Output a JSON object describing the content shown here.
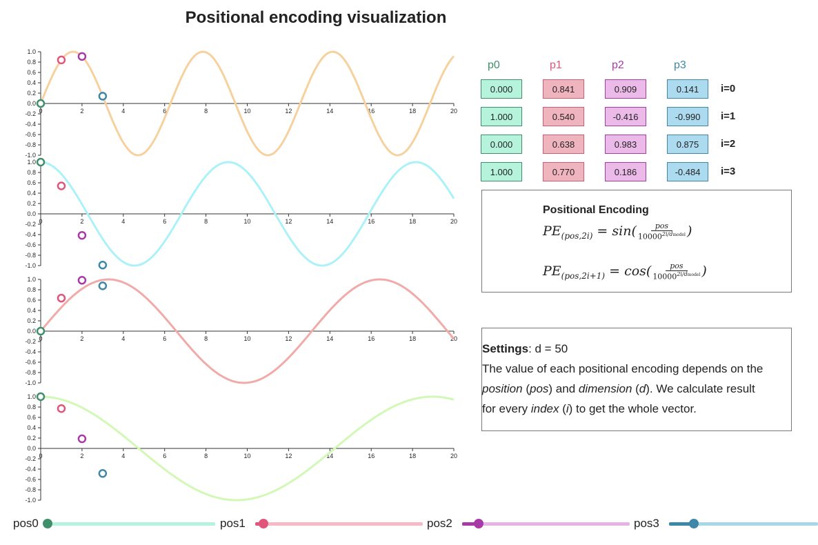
{
  "title": "Positional encoding visualization",
  "chart_data": {
    "type": "line",
    "x_range": [
      0,
      20
    ],
    "y_range": [
      -1,
      1
    ],
    "x_ticks": [
      0,
      2,
      4,
      6,
      8,
      10,
      12,
      14,
      16,
      18,
      20
    ],
    "y_ticks": [
      1.0,
      0.8,
      0.6,
      0.4,
      0.2,
      0.0,
      -0.2,
      -0.4,
      -0.6,
      -0.8,
      -1.0
    ],
    "d_model": 50,
    "positions": [
      0,
      1,
      2,
      3
    ],
    "position_colors": [
      "#3f8f6b",
      "#e0567a",
      "#a83aa8",
      "#3d87a8"
    ],
    "subplots": [
      {
        "index": 0,
        "func": "sin",
        "color": "#f6d19e",
        "points": [
          0.0,
          0.841,
          0.909,
          0.141
        ]
      },
      {
        "index": 1,
        "func": "cos",
        "color": "#aaf1f8",
        "points": [
          1.0,
          0.54,
          -0.416,
          -0.99
        ]
      },
      {
        "index": 2,
        "func": "sin",
        "color": "#f0aaa8",
        "points": [
          0.0,
          0.638,
          0.983,
          0.875
        ]
      },
      {
        "index": 3,
        "func": "cos",
        "color": "#d2f8b6",
        "points": [
          1.0,
          0.77,
          0.186,
          -0.484
        ]
      }
    ]
  },
  "table": {
    "headers": [
      "p0",
      "p1",
      "p2",
      "p3"
    ],
    "header_colors": [
      "#3f8f6b",
      "#e0567a",
      "#a83aa8",
      "#3d87a8"
    ],
    "cell_colors": [
      {
        "bg": "#b5f3dd",
        "border": "#3f8f6b"
      },
      {
        "bg": "#f0b4be",
        "border": "#d05a70"
      },
      {
        "bg": "#ebbae9",
        "border": "#a83aa8"
      },
      {
        "bg": "#acdbef",
        "border": "#3d87a8"
      }
    ],
    "rows": [
      {
        "label": "i=0",
        "values": [
          "0.000",
          "0.841",
          "0.909",
          "0.141"
        ]
      },
      {
        "label": "i=1",
        "values": [
          "1.000",
          "0.540",
          "-0.416",
          "-0.990"
        ]
      },
      {
        "label": "i=2",
        "values": [
          "0.000",
          "0.638",
          "0.983",
          "0.875"
        ]
      },
      {
        "label": "i=3",
        "values": [
          "1.000",
          "0.770",
          "0.186",
          "-0.484"
        ]
      }
    ]
  },
  "formula": {
    "title": "Positional Encoding",
    "pe": "PE",
    "sub1": "(pos,2i)",
    "sub2": "(pos,2i+1)",
    "eq": " = ",
    "fn1": "sin(",
    "fn2": "cos(",
    "close": ")",
    "num": "pos",
    "den_base": "10000",
    "den_exp": "2i/d",
    "den_exp_sub": "model"
  },
  "settings": {
    "label": "Settings",
    "value": ": d = 50",
    "text1": "The value of each positional encoding depends on the",
    "t_position": "position",
    "t_pos_open": " (",
    "t_pos": "pos",
    "t_and": ") and ",
    "t_dimension": "dimension",
    "t_d_open": " (",
    "t_d": "d",
    "t_calc": "). We calculate result",
    "t_for": "for every ",
    "t_index": "index",
    "t_i_open": " (",
    "t_i": "i",
    "t_end": ") to get the whole vector."
  },
  "sliders": [
    {
      "label": "pos0",
      "value": 0,
      "color": "#3f8f6b",
      "track": "#b5f3dd"
    },
    {
      "label": "pos1",
      "value": 1,
      "color": "#e0567a",
      "track": "#f7b9c6"
    },
    {
      "label": "pos2",
      "value": 2,
      "color": "#a83aa8",
      "track": "#e6b3e6"
    },
    {
      "label": "pos3",
      "value": 3,
      "color": "#3d87a8",
      "track": "#a9d7ea"
    }
  ],
  "slider_range": [
    0,
    20
  ]
}
